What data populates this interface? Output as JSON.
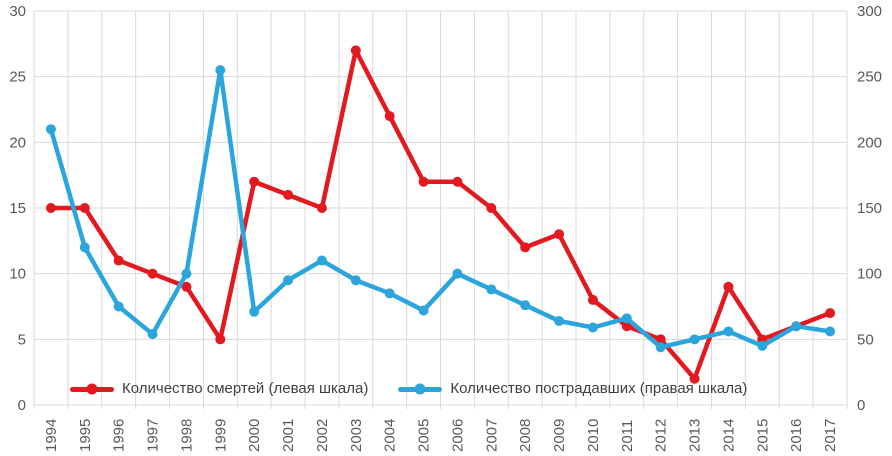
{
  "chart_data": {
    "type": "line",
    "title": "",
    "categories": [
      "1994",
      "1995",
      "1996",
      "1997",
      "1998",
      "1999",
      "2000",
      "2001",
      "2002",
      "2003",
      "2004",
      "2005",
      "2006",
      "2007",
      "2008",
      "2009",
      "2010",
      "2011",
      "2012",
      "2013",
      "2014",
      "2015",
      "2016",
      "2017"
    ],
    "series": [
      {
        "name": "Количество смертей (левая шкала)",
        "axis": "left",
        "color": "#e2191f",
        "values": [
          15,
          15,
          11,
          10,
          9,
          5,
          17,
          16,
          15,
          27,
          22,
          17,
          17,
          15,
          12,
          13,
          8,
          6,
          5,
          2,
          9,
          5,
          6,
          7
        ]
      },
      {
        "name": "Количество пострадавших (правая шкала)",
        "axis": "right",
        "color": "#2ba5dc",
        "values": [
          210,
          120,
          75,
          54,
          100,
          255,
          71,
          95,
          110,
          95,
          85,
          72,
          100,
          88,
          76,
          64,
          59,
          66,
          44,
          50,
          56,
          45,
          60,
          56
        ]
      }
    ],
    "left_axis": {
      "min": 0,
      "max": 30,
      "step": 5,
      "tick_labels": [
        "0",
        "5",
        "10",
        "15",
        "20",
        "25",
        "30"
      ]
    },
    "right_axis": {
      "min": 0,
      "max": 300,
      "step": 50,
      "tick_labels": [
        "0",
        "50",
        "100",
        "150",
        "200",
        "250",
        "300"
      ]
    },
    "grid": true,
    "legend_position": "bottom-inside",
    "colors": {
      "grid": "#d9d9d9",
      "axis_text": "#595959",
      "legend_text": "#404040",
      "background": "#ffffff"
    }
  }
}
